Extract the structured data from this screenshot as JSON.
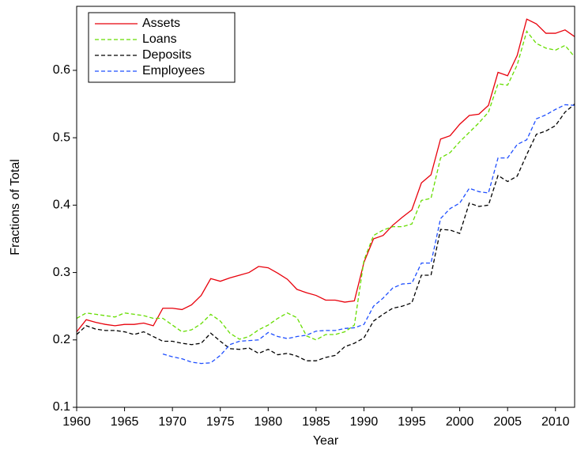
{
  "chart_data": {
    "type": "line",
    "x_label": "Year",
    "y_label": "Fractions of Total",
    "x": [
      1960,
      1961,
      1962,
      1963,
      1964,
      1965,
      1966,
      1967,
      1968,
      1969,
      1970,
      1971,
      1972,
      1973,
      1974,
      1975,
      1976,
      1977,
      1978,
      1979,
      1980,
      1981,
      1982,
      1983,
      1984,
      1985,
      1986,
      1987,
      1988,
      1989,
      1990,
      1991,
      1992,
      1993,
      1994,
      1995,
      1996,
      1997,
      1998,
      1999,
      2000,
      2001,
      2002,
      2003,
      2004,
      2005,
      2006,
      2007,
      2008,
      2009,
      2010,
      2011,
      2012
    ],
    "series": [
      {
        "name": "Assets",
        "color": "#e8000b",
        "style": "solid",
        "values": [
          0.212,
          0.23,
          0.226,
          0.223,
          0.221,
          0.223,
          0.223,
          0.225,
          0.221,
          0.247,
          0.247,
          0.245,
          0.252,
          0.266,
          0.291,
          0.287,
          0.292,
          0.296,
          0.3,
          0.309,
          0.307,
          0.299,
          0.29,
          0.275,
          0.27,
          0.266,
          0.259,
          0.259,
          0.256,
          0.258,
          0.315,
          0.35,
          0.355,
          0.37,
          0.382,
          0.393,
          0.433,
          0.445,
          0.498,
          0.503,
          0.52,
          0.533,
          0.535,
          0.548,
          0.597,
          0.592,
          0.622,
          0.676,
          0.669,
          0.655,
          0.655,
          0.66,
          0.65
        ]
      },
      {
        "name": "Loans",
        "color": "#66dd00",
        "style": "dashed",
        "values": [
          0.232,
          0.24,
          0.238,
          0.236,
          0.234,
          0.24,
          0.238,
          0.236,
          0.232,
          0.232,
          0.222,
          0.212,
          0.215,
          0.224,
          0.238,
          0.228,
          0.21,
          0.201,
          0.205,
          0.215,
          0.222,
          0.232,
          0.24,
          0.233,
          0.206,
          0.2,
          0.208,
          0.208,
          0.212,
          0.222,
          0.318,
          0.355,
          0.363,
          0.368,
          0.368,
          0.372,
          0.407,
          0.41,
          0.47,
          0.478,
          0.494,
          0.508,
          0.522,
          0.538,
          0.58,
          0.578,
          0.608,
          0.658,
          0.64,
          0.633,
          0.63,
          0.637,
          0.62
        ]
      },
      {
        "name": "Deposits",
        "color": "#000000",
        "style": "dashed",
        "values": [
          0.208,
          0.221,
          0.216,
          0.214,
          0.214,
          0.212,
          0.208,
          0.212,
          0.205,
          0.198,
          0.198,
          0.195,
          0.193,
          0.195,
          0.21,
          0.198,
          0.187,
          0.186,
          0.188,
          0.18,
          0.186,
          0.178,
          0.18,
          0.176,
          0.169,
          0.169,
          0.174,
          0.177,
          0.19,
          0.195,
          0.203,
          0.228,
          0.238,
          0.247,
          0.25,
          0.255,
          0.296,
          0.296,
          0.364,
          0.363,
          0.358,
          0.403,
          0.398,
          0.4,
          0.444,
          0.435,
          0.443,
          0.475,
          0.505,
          0.51,
          0.518,
          0.538,
          0.55
        ]
      },
      {
        "name": "Employees",
        "color": "#1f4fff",
        "style": "dashed",
        "values": [
          null,
          null,
          null,
          null,
          null,
          null,
          null,
          null,
          null,
          0.179,
          0.175,
          0.172,
          0.167,
          0.165,
          0.166,
          0.177,
          0.193,
          0.198,
          0.199,
          0.2,
          0.211,
          0.205,
          0.202,
          0.205,
          0.207,
          0.213,
          0.214,
          0.214,
          0.217,
          0.218,
          0.223,
          0.25,
          0.262,
          0.277,
          0.283,
          0.284,
          0.314,
          0.314,
          0.38,
          0.395,
          0.403,
          0.425,
          0.42,
          0.418,
          0.47,
          0.47,
          0.49,
          0.497,
          0.528,
          0.534,
          0.542,
          0.549,
          0.548
        ]
      }
    ],
    "xlim": [
      1960,
      2012
    ],
    "xticks": [
      1960,
      1965,
      1970,
      1975,
      1980,
      1985,
      1990,
      1995,
      2000,
      2005,
      2010
    ],
    "ylim": [
      0.1,
      0.695
    ],
    "yticks": [
      0.1,
      0.2,
      0.3,
      0.4,
      0.5,
      0.6
    ],
    "legend": "top-left",
    "grid": false
  }
}
